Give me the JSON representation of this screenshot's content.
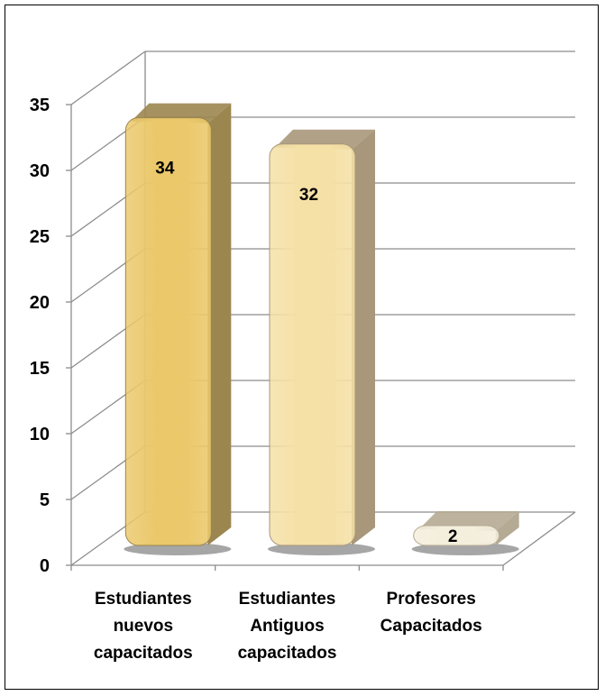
{
  "chart_data": {
    "type": "bar",
    "categories": [
      [
        "Estudiantes",
        "nuevos",
        "capacitados"
      ],
      [
        "Estudiantes",
        "Antiguos",
        "capacitados"
      ],
      [
        "Profesores",
        "Capacitados"
      ]
    ],
    "values": [
      34,
      32,
      2
    ],
    "data_labels": [
      "34",
      "32",
      "2"
    ],
    "y_ticks": [
      "0",
      "5",
      "10",
      "15",
      "20",
      "25",
      "30",
      "35"
    ],
    "ylim": [
      0,
      35
    ],
    "grid": true,
    "legend": "none",
    "style": "3d",
    "colors": [
      "#EBC86A",
      "#F5E0A6",
      "#F4EEDC"
    ],
    "side_colors": [
      "#9C8650",
      "#A8977A",
      "#B5AA94"
    ]
  }
}
